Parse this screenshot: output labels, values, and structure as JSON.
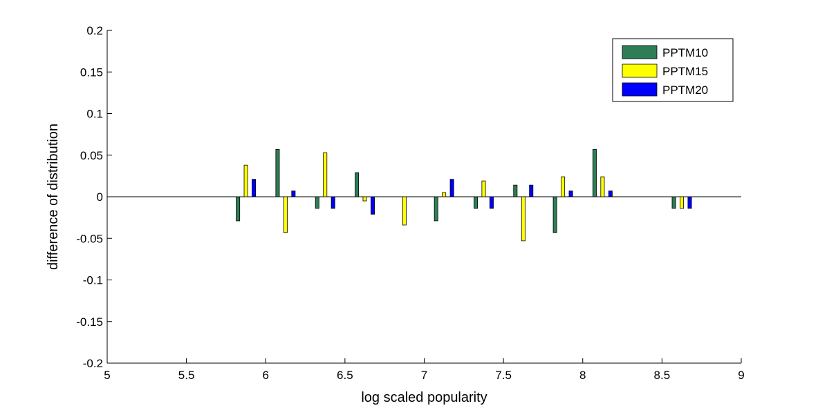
{
  "chart_data": {
    "type": "bar",
    "title": "",
    "xlabel": "log scaled popularity",
    "ylabel": "difference of distribution",
    "xlim": [
      5,
      9
    ],
    "ylim": [
      -0.2,
      0.2
    ],
    "xticks": [
      "5",
      "5.5",
      "6",
      "6.5",
      "7",
      "7.5",
      "8",
      "8.5",
      "9"
    ],
    "yticks": [
      "-0.2",
      "-0.15",
      "-0.1",
      "-0.05",
      "0",
      "0.05",
      "0.1",
      "0.15",
      "0.2"
    ],
    "grid": false,
    "legend_position": "top-right",
    "x": [
      5.875,
      6.125,
      6.375,
      6.625,
      6.875,
      7.125,
      7.375,
      7.625,
      7.875,
      8.125,
      8.625
    ],
    "series": [
      {
        "name": "PPTM10",
        "color": "#2e7d55",
        "values": [
          -0.029,
          0.057,
          -0.014,
          0.029,
          0.0,
          -0.029,
          -0.014,
          0.014,
          -0.043,
          0.057,
          -0.014
        ]
      },
      {
        "name": "PPTM15",
        "color": "#ffff00",
        "values": [
          0.038,
          -0.043,
          0.053,
          -0.005,
          -0.034,
          0.005,
          0.019,
          -0.053,
          0.024,
          0.024,
          -0.014
        ]
      },
      {
        "name": "PPTM20",
        "color": "#0000ff",
        "values": [
          0.021,
          0.007,
          -0.014,
          -0.021,
          0.0,
          0.021,
          -0.014,
          0.014,
          0.007,
          0.007,
          -0.014
        ]
      }
    ]
  }
}
